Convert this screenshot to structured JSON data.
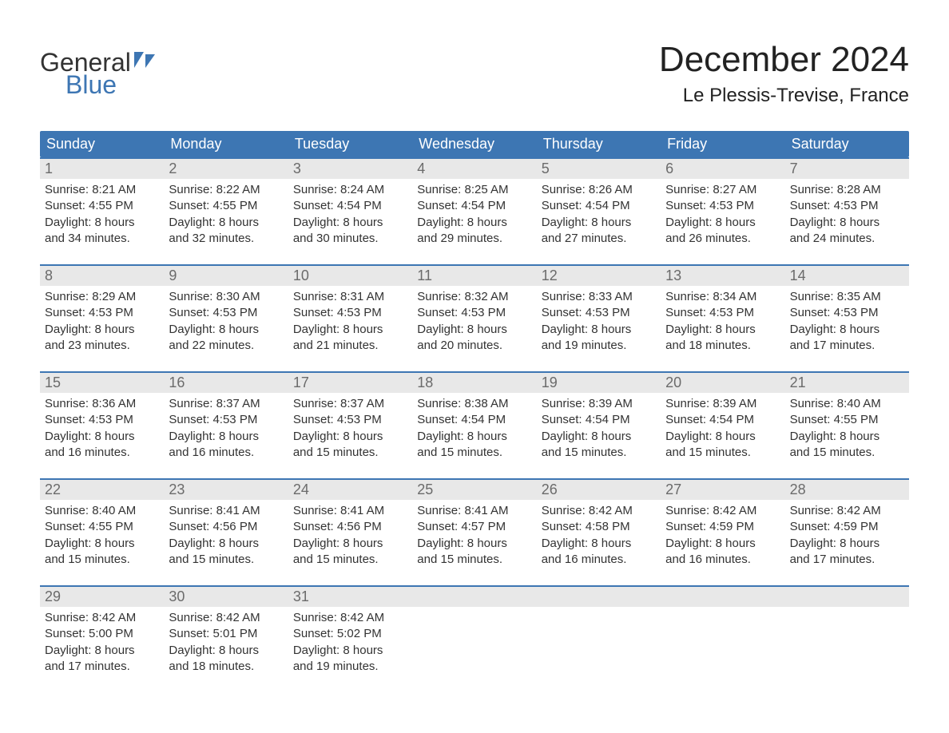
{
  "brand": {
    "line1": "General",
    "line2": "Blue",
    "accent_color": "#3d76b3",
    "text_color": "#333333"
  },
  "title": "December 2024",
  "location": "Le Plessis-Trevise, France",
  "colors": {
    "header_bg": "#3d76b3",
    "header_text": "#ffffff",
    "daynum_bg": "#e8e8e8",
    "daynum_text": "#6b6b6b",
    "body_text": "#333333",
    "page_bg": "#ffffff",
    "week_border": "#3d76b3"
  },
  "weekdays": [
    "Sunday",
    "Monday",
    "Tuesday",
    "Wednesday",
    "Thursday",
    "Friday",
    "Saturday"
  ],
  "weeks": [
    [
      {
        "day": "1",
        "sunrise": "Sunrise: 8:21 AM",
        "sunset": "Sunset: 4:55 PM",
        "dl1": "Daylight: 8 hours",
        "dl2": "and 34 minutes."
      },
      {
        "day": "2",
        "sunrise": "Sunrise: 8:22 AM",
        "sunset": "Sunset: 4:55 PM",
        "dl1": "Daylight: 8 hours",
        "dl2": "and 32 minutes."
      },
      {
        "day": "3",
        "sunrise": "Sunrise: 8:24 AM",
        "sunset": "Sunset: 4:54 PM",
        "dl1": "Daylight: 8 hours",
        "dl2": "and 30 minutes."
      },
      {
        "day": "4",
        "sunrise": "Sunrise: 8:25 AM",
        "sunset": "Sunset: 4:54 PM",
        "dl1": "Daylight: 8 hours",
        "dl2": "and 29 minutes."
      },
      {
        "day": "5",
        "sunrise": "Sunrise: 8:26 AM",
        "sunset": "Sunset: 4:54 PM",
        "dl1": "Daylight: 8 hours",
        "dl2": "and 27 minutes."
      },
      {
        "day": "6",
        "sunrise": "Sunrise: 8:27 AM",
        "sunset": "Sunset: 4:53 PM",
        "dl1": "Daylight: 8 hours",
        "dl2": "and 26 minutes."
      },
      {
        "day": "7",
        "sunrise": "Sunrise: 8:28 AM",
        "sunset": "Sunset: 4:53 PM",
        "dl1": "Daylight: 8 hours",
        "dl2": "and 24 minutes."
      }
    ],
    [
      {
        "day": "8",
        "sunrise": "Sunrise: 8:29 AM",
        "sunset": "Sunset: 4:53 PM",
        "dl1": "Daylight: 8 hours",
        "dl2": "and 23 minutes."
      },
      {
        "day": "9",
        "sunrise": "Sunrise: 8:30 AM",
        "sunset": "Sunset: 4:53 PM",
        "dl1": "Daylight: 8 hours",
        "dl2": "and 22 minutes."
      },
      {
        "day": "10",
        "sunrise": "Sunrise: 8:31 AM",
        "sunset": "Sunset: 4:53 PM",
        "dl1": "Daylight: 8 hours",
        "dl2": "and 21 minutes."
      },
      {
        "day": "11",
        "sunrise": "Sunrise: 8:32 AM",
        "sunset": "Sunset: 4:53 PM",
        "dl1": "Daylight: 8 hours",
        "dl2": "and 20 minutes."
      },
      {
        "day": "12",
        "sunrise": "Sunrise: 8:33 AM",
        "sunset": "Sunset: 4:53 PM",
        "dl1": "Daylight: 8 hours",
        "dl2": "and 19 minutes."
      },
      {
        "day": "13",
        "sunrise": "Sunrise: 8:34 AM",
        "sunset": "Sunset: 4:53 PM",
        "dl1": "Daylight: 8 hours",
        "dl2": "and 18 minutes."
      },
      {
        "day": "14",
        "sunrise": "Sunrise: 8:35 AM",
        "sunset": "Sunset: 4:53 PM",
        "dl1": "Daylight: 8 hours",
        "dl2": "and 17 minutes."
      }
    ],
    [
      {
        "day": "15",
        "sunrise": "Sunrise: 8:36 AM",
        "sunset": "Sunset: 4:53 PM",
        "dl1": "Daylight: 8 hours",
        "dl2": "and 16 minutes."
      },
      {
        "day": "16",
        "sunrise": "Sunrise: 8:37 AM",
        "sunset": "Sunset: 4:53 PM",
        "dl1": "Daylight: 8 hours",
        "dl2": "and 16 minutes."
      },
      {
        "day": "17",
        "sunrise": "Sunrise: 8:37 AM",
        "sunset": "Sunset: 4:53 PM",
        "dl1": "Daylight: 8 hours",
        "dl2": "and 15 minutes."
      },
      {
        "day": "18",
        "sunrise": "Sunrise: 8:38 AM",
        "sunset": "Sunset: 4:54 PM",
        "dl1": "Daylight: 8 hours",
        "dl2": "and 15 minutes."
      },
      {
        "day": "19",
        "sunrise": "Sunrise: 8:39 AM",
        "sunset": "Sunset: 4:54 PM",
        "dl1": "Daylight: 8 hours",
        "dl2": "and 15 minutes."
      },
      {
        "day": "20",
        "sunrise": "Sunrise: 8:39 AM",
        "sunset": "Sunset: 4:54 PM",
        "dl1": "Daylight: 8 hours",
        "dl2": "and 15 minutes."
      },
      {
        "day": "21",
        "sunrise": "Sunrise: 8:40 AM",
        "sunset": "Sunset: 4:55 PM",
        "dl1": "Daylight: 8 hours",
        "dl2": "and 15 minutes."
      }
    ],
    [
      {
        "day": "22",
        "sunrise": "Sunrise: 8:40 AM",
        "sunset": "Sunset: 4:55 PM",
        "dl1": "Daylight: 8 hours",
        "dl2": "and 15 minutes."
      },
      {
        "day": "23",
        "sunrise": "Sunrise: 8:41 AM",
        "sunset": "Sunset: 4:56 PM",
        "dl1": "Daylight: 8 hours",
        "dl2": "and 15 minutes."
      },
      {
        "day": "24",
        "sunrise": "Sunrise: 8:41 AM",
        "sunset": "Sunset: 4:56 PM",
        "dl1": "Daylight: 8 hours",
        "dl2": "and 15 minutes."
      },
      {
        "day": "25",
        "sunrise": "Sunrise: 8:41 AM",
        "sunset": "Sunset: 4:57 PM",
        "dl1": "Daylight: 8 hours",
        "dl2": "and 15 minutes."
      },
      {
        "day": "26",
        "sunrise": "Sunrise: 8:42 AM",
        "sunset": "Sunset: 4:58 PM",
        "dl1": "Daylight: 8 hours",
        "dl2": "and 16 minutes."
      },
      {
        "day": "27",
        "sunrise": "Sunrise: 8:42 AM",
        "sunset": "Sunset: 4:59 PM",
        "dl1": "Daylight: 8 hours",
        "dl2": "and 16 minutes."
      },
      {
        "day": "28",
        "sunrise": "Sunrise: 8:42 AM",
        "sunset": "Sunset: 4:59 PM",
        "dl1": "Daylight: 8 hours",
        "dl2": "and 17 minutes."
      }
    ],
    [
      {
        "day": "29",
        "sunrise": "Sunrise: 8:42 AM",
        "sunset": "Sunset: 5:00 PM",
        "dl1": "Daylight: 8 hours",
        "dl2": "and 17 minutes."
      },
      {
        "day": "30",
        "sunrise": "Sunrise: 8:42 AM",
        "sunset": "Sunset: 5:01 PM",
        "dl1": "Daylight: 8 hours",
        "dl2": "and 18 minutes."
      },
      {
        "day": "31",
        "sunrise": "Sunrise: 8:42 AM",
        "sunset": "Sunset: 5:02 PM",
        "dl1": "Daylight: 8 hours",
        "dl2": "and 19 minutes."
      },
      null,
      null,
      null,
      null
    ]
  ]
}
